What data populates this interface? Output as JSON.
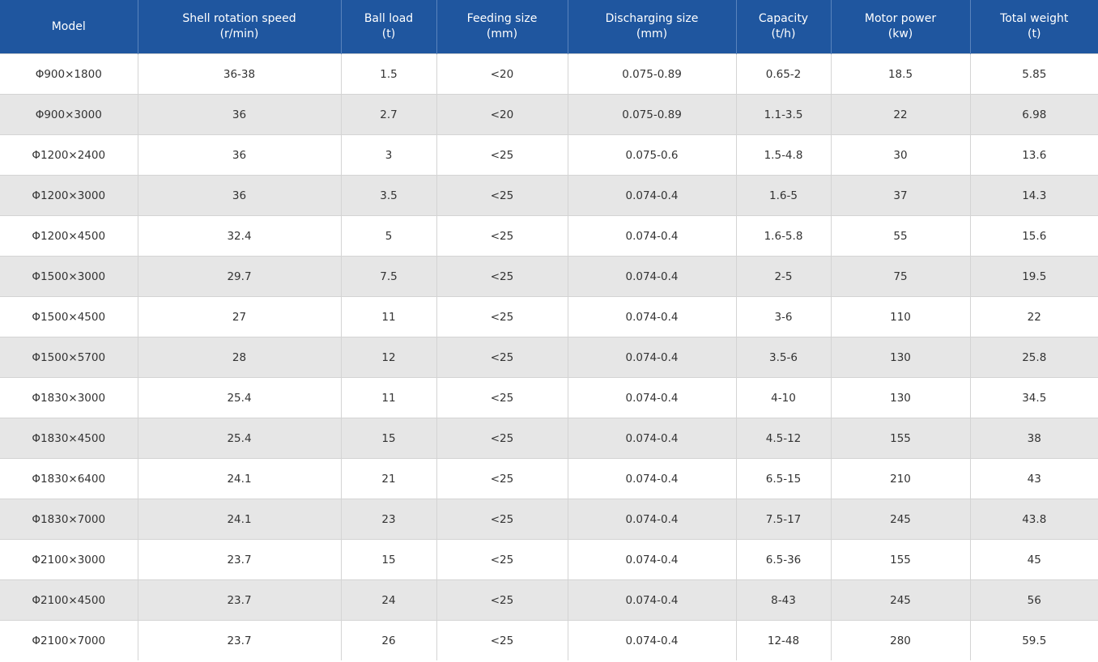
{
  "table": {
    "header": [
      [
        "Model"
      ],
      [
        "Shell rotation speed",
        "(r/min)"
      ],
      [
        "Ball load",
        "(t)"
      ],
      [
        "Feeding size",
        "(mm)"
      ],
      [
        "Discharging size",
        "(mm)"
      ],
      [
        "Capacity",
        "(t/h)"
      ],
      [
        "Motor power",
        "(kw)"
      ],
      [
        "Total weight",
        "(t)"
      ]
    ],
    "rows": [
      [
        "Φ900×1800",
        "36-38",
        "1.5",
        "<20",
        "0.075-0.89",
        "0.65-2",
        "18.5",
        "5.85"
      ],
      [
        "Φ900×3000",
        "36",
        "2.7",
        "<20",
        "0.075-0.89",
        "1.1-3.5",
        "22",
        "6.98"
      ],
      [
        "Φ1200×2400",
        "36",
        "3",
        "<25",
        "0.075-0.6",
        "1.5-4.8",
        "30",
        "13.6"
      ],
      [
        "Φ1200×3000",
        "36",
        "3.5",
        "<25",
        "0.074-0.4",
        "1.6-5",
        "37",
        "14.3"
      ],
      [
        "Φ1200×4500",
        "32.4",
        "5",
        "<25",
        "0.074-0.4",
        "1.6-5.8",
        "55",
        "15.6"
      ],
      [
        "Φ1500×3000",
        "29.7",
        "7.5",
        "<25",
        "0.074-0.4",
        "2-5",
        "75",
        "19.5"
      ],
      [
        "Φ1500×4500",
        "27",
        "11",
        "<25",
        "0.074-0.4",
        "3-6",
        "110",
        "22"
      ],
      [
        "Φ1500×5700",
        "28",
        "12",
        "<25",
        "0.074-0.4",
        "3.5-6",
        "130",
        "25.8"
      ],
      [
        "Φ1830×3000",
        "25.4",
        "11",
        "<25",
        "0.074-0.4",
        "4-10",
        "130",
        "34.5"
      ],
      [
        "Φ1830×4500",
        "25.4",
        "15",
        "<25",
        "0.074-0.4",
        "4.5-12",
        "155",
        "38"
      ],
      [
        "Φ1830×6400",
        "24.1",
        "21",
        "<25",
        "0.074-0.4",
        "6.5-15",
        "210",
        "43"
      ],
      [
        "Φ1830×7000",
        "24.1",
        "23",
        "<25",
        "0.074-0.4",
        "7.5-17",
        "245",
        "43.8"
      ],
      [
        "Φ2100×3000",
        "23.7",
        "15",
        "<25",
        "0.074-0.4",
        "6.5-36",
        "155",
        "45"
      ],
      [
        "Φ2100×4500",
        "23.7",
        "24",
        "<25",
        "0.074-0.4",
        "8-43",
        "245",
        "56"
      ],
      [
        "Φ2100×7000",
        "23.7",
        "26",
        "<25",
        "0.074-0.4",
        "12-48",
        "280",
        "59.5"
      ]
    ]
  }
}
